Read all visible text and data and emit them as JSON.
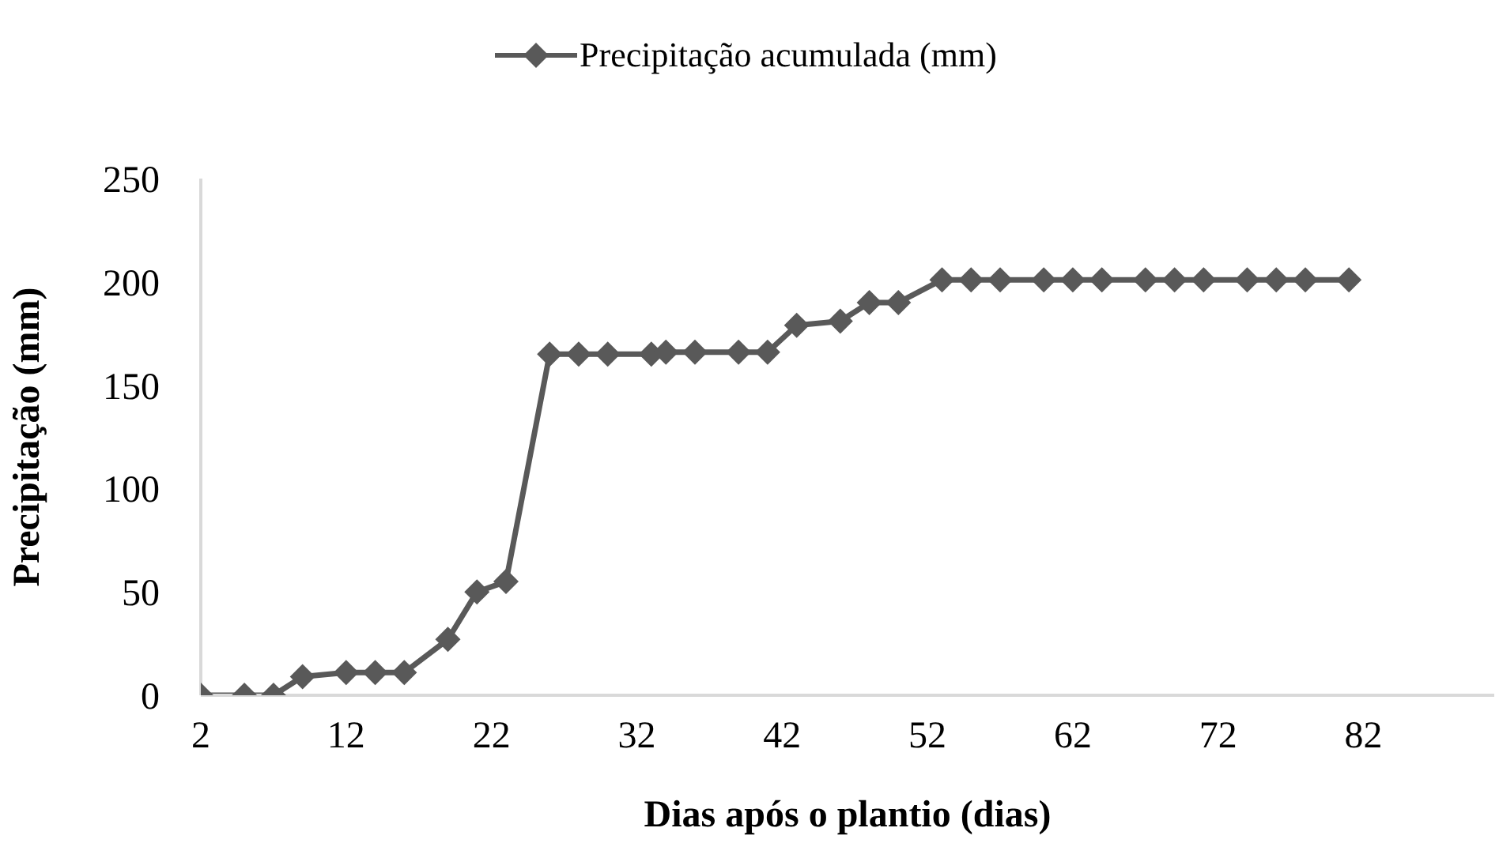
{
  "chart_data": {
    "type": "line",
    "xlabel": "Dias após o plantio (dias)",
    "ylabel": "Precipitação (mm)",
    "x": [
      2,
      5,
      7,
      9,
      12,
      14,
      16,
      19,
      21,
      23,
      26,
      28,
      30,
      33,
      34,
      36,
      39,
      41,
      43,
      46,
      48,
      50,
      53,
      55,
      57,
      60,
      62,
      64,
      67,
      69,
      71,
      74,
      76,
      78,
      81
    ],
    "series": [
      {
        "name": "Precipitação acumulada (mm)",
        "color": "#595959",
        "values": [
          0,
          0,
          0,
          9,
          11,
          11,
          11,
          27,
          50,
          55,
          165,
          165,
          165,
          165,
          166,
          166,
          166,
          166,
          179,
          181,
          190,
          190,
          201,
          201,
          201,
          201,
          201,
          201,
          201,
          201,
          201,
          201,
          201,
          201,
          201
        ]
      }
    ],
    "xlim": [
      2,
      91
    ],
    "xticks": [
      2,
      12,
      22,
      32,
      42,
      52,
      62,
      72,
      82
    ],
    "ylim": [
      0,
      250
    ],
    "yticks": [
      0,
      50,
      100,
      150,
      200,
      250
    ],
    "grid": false,
    "legend": "top",
    "marker": "diamond",
    "line_style": "solid"
  }
}
